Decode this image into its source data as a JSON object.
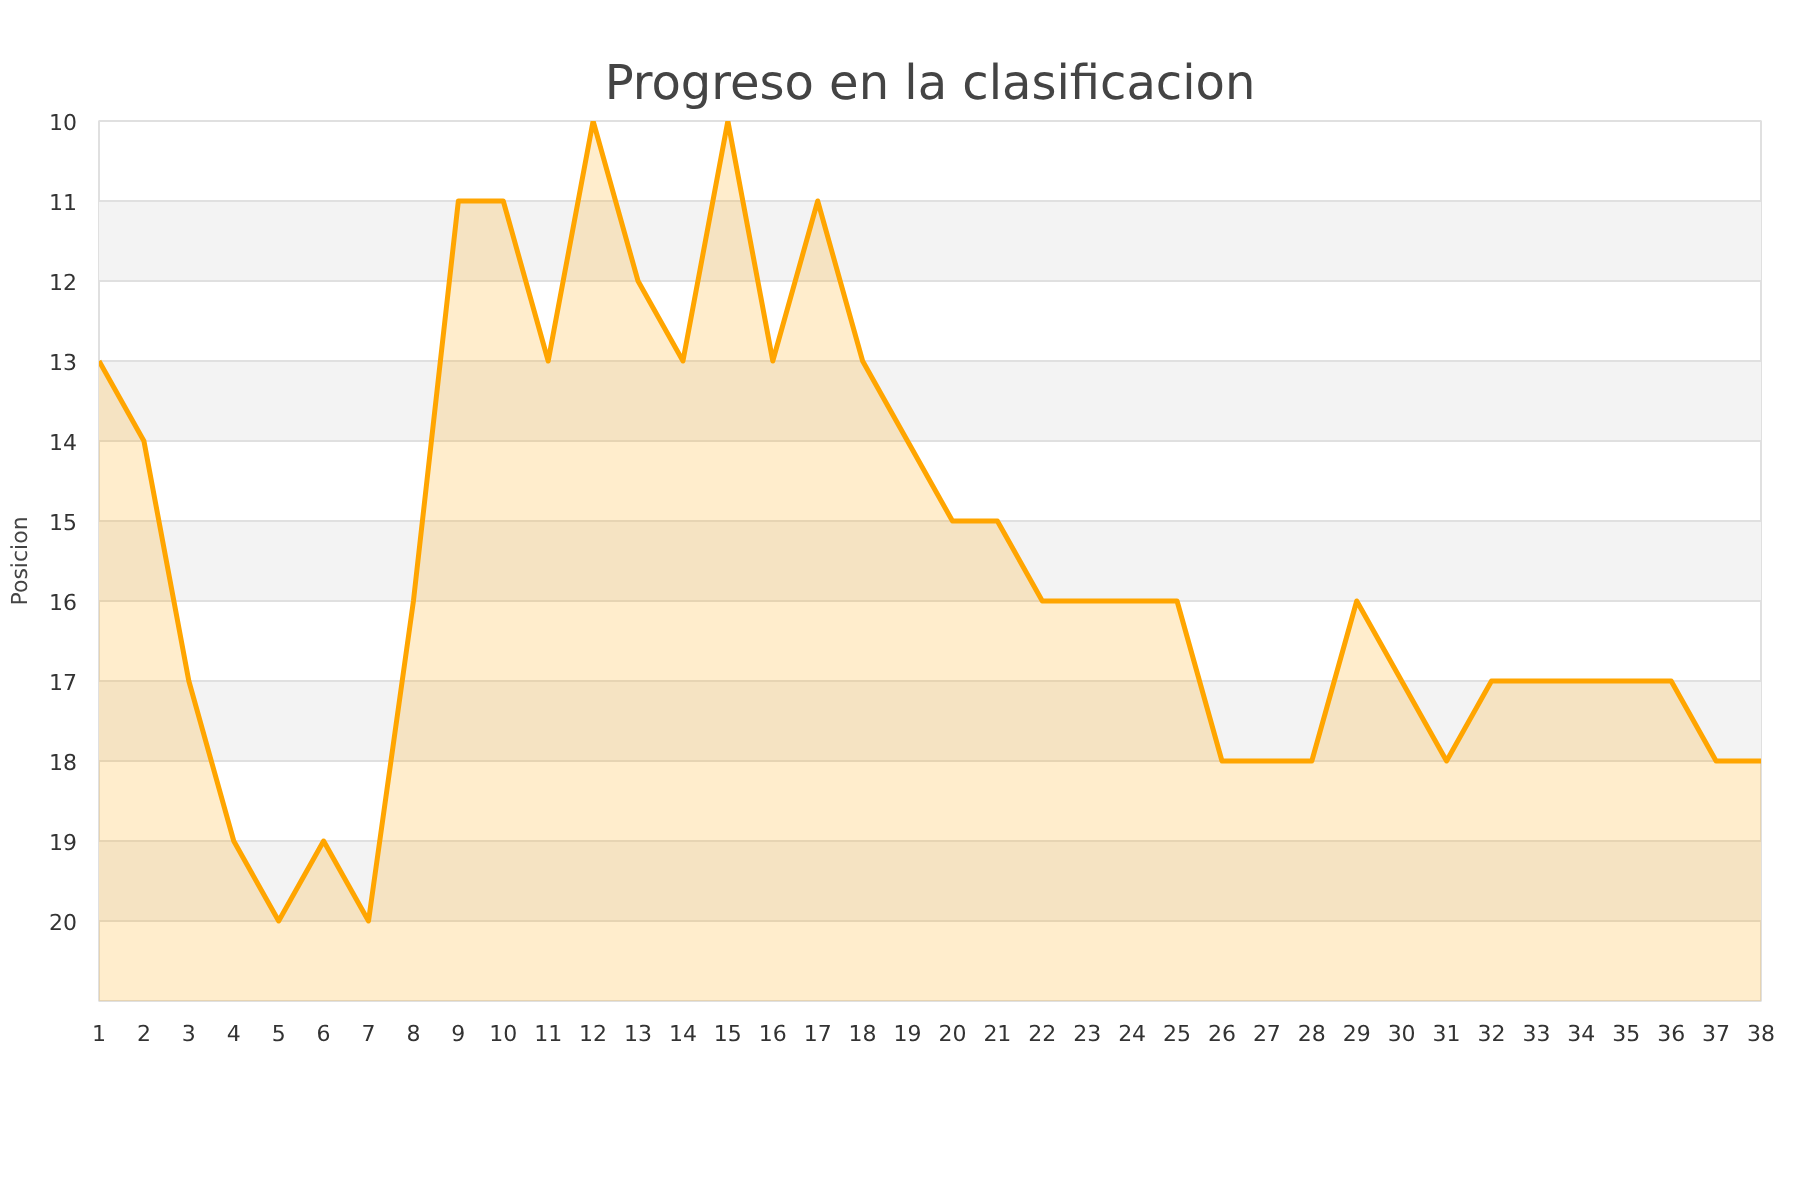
{
  "chart_data": {
    "type": "area",
    "title": "Progreso en la clasificacion",
    "ylabel": "Posicion",
    "x": [
      1,
      2,
      3,
      4,
      5,
      6,
      7,
      8,
      9,
      10,
      11,
      12,
      13,
      14,
      15,
      16,
      17,
      18,
      19,
      20,
      21,
      22,
      23,
      24,
      25,
      26,
      27,
      28,
      29,
      30,
      31,
      32,
      33,
      34,
      35,
      36,
      37,
      38
    ],
    "series": [
      {
        "color": "#ffa500",
        "values": [
          13,
          14,
          17,
          19,
          20,
          19,
          20,
          16,
          11,
          11,
          13,
          10,
          12,
          13,
          10,
          13,
          11,
          13,
          14,
          15,
          15,
          16,
          16,
          16,
          16,
          18,
          18,
          18,
          16,
          17,
          18,
          17,
          17,
          17,
          17,
          17,
          18,
          18
        ]
      }
    ],
    "xlim": [
      1,
      38
    ],
    "xticks": [
      1,
      2,
      3,
      4,
      5,
      6,
      7,
      8,
      9,
      10,
      11,
      12,
      13,
      14,
      15,
      16,
      17,
      18,
      19,
      20,
      21,
      22,
      23,
      24,
      25,
      26,
      27,
      28,
      29,
      30,
      31,
      32,
      33,
      34,
      35,
      36,
      37,
      38
    ],
    "ylim": [
      21,
      10
    ],
    "yticks": [
      10,
      11,
      12,
      13,
      14,
      15,
      16,
      17,
      18,
      19,
      20
    ],
    "grid": "y"
  }
}
